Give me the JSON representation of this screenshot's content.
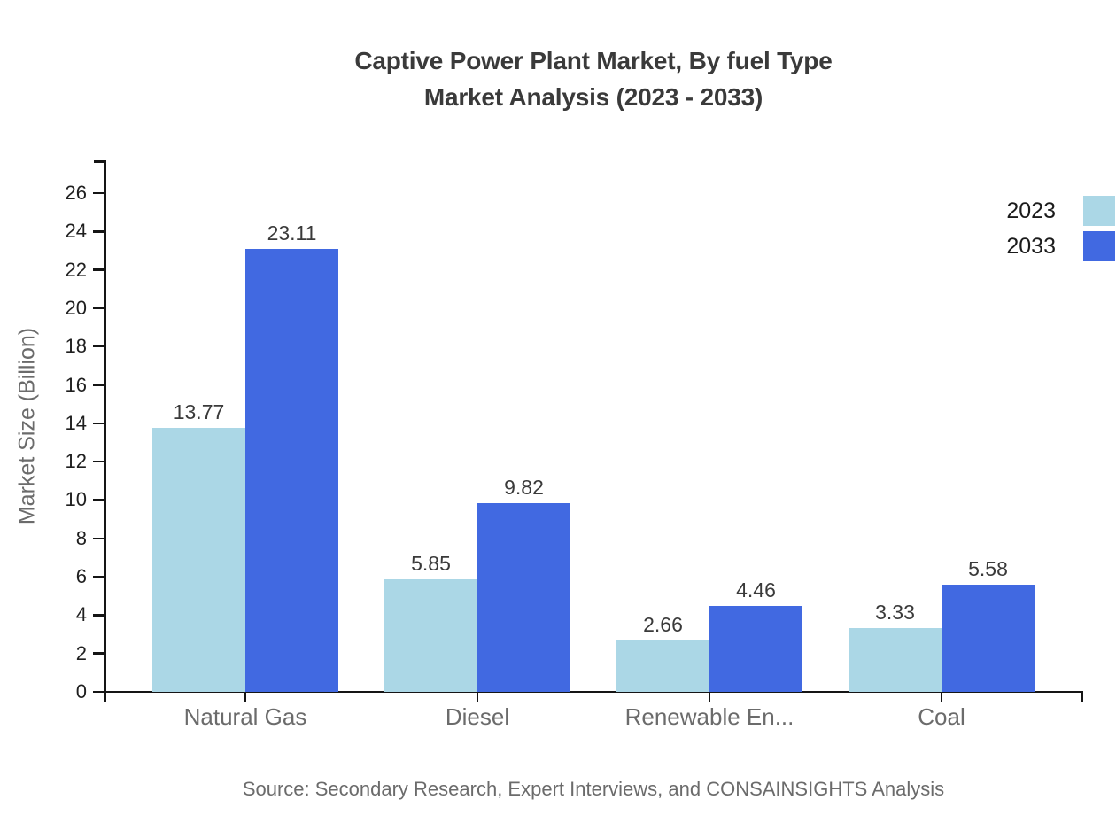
{
  "chart_data": {
    "type": "bar",
    "title_lines": [
      "Captive Power Plant Market, By fuel Type",
      "Market Analysis (2023 - 2033)"
    ],
    "ylabel": "Market Size (Billion)",
    "categories": [
      "Natural Gas",
      "Diesel",
      "Renewable En...",
      "Coal"
    ],
    "series": [
      {
        "name": "2023",
        "color": "#abd7e6",
        "values": [
          13.77,
          5.85,
          2.66,
          3.33
        ]
      },
      {
        "name": "2033",
        "color": "#4169e1",
        "values": [
          23.11,
          9.82,
          4.46,
          5.58
        ]
      }
    ],
    "value_labels_shown": true,
    "ylim": [
      0,
      26
    ],
    "ytick_step": 2,
    "grid": false,
    "legend_position": "top-right",
    "source_note": "Source: Secondary Research, Expert Interviews, and CONSAINSIGHTS Analysis",
    "colors": {
      "axis": "#151515",
      "title_text": "#3a3a3a",
      "value_label_text": "#3a3a3a",
      "tick_label_text": "#1f1f1f",
      "legend_text": "#1b1b1b",
      "muted_text": "#6b6b6b",
      "background": "#ffffff"
    }
  }
}
